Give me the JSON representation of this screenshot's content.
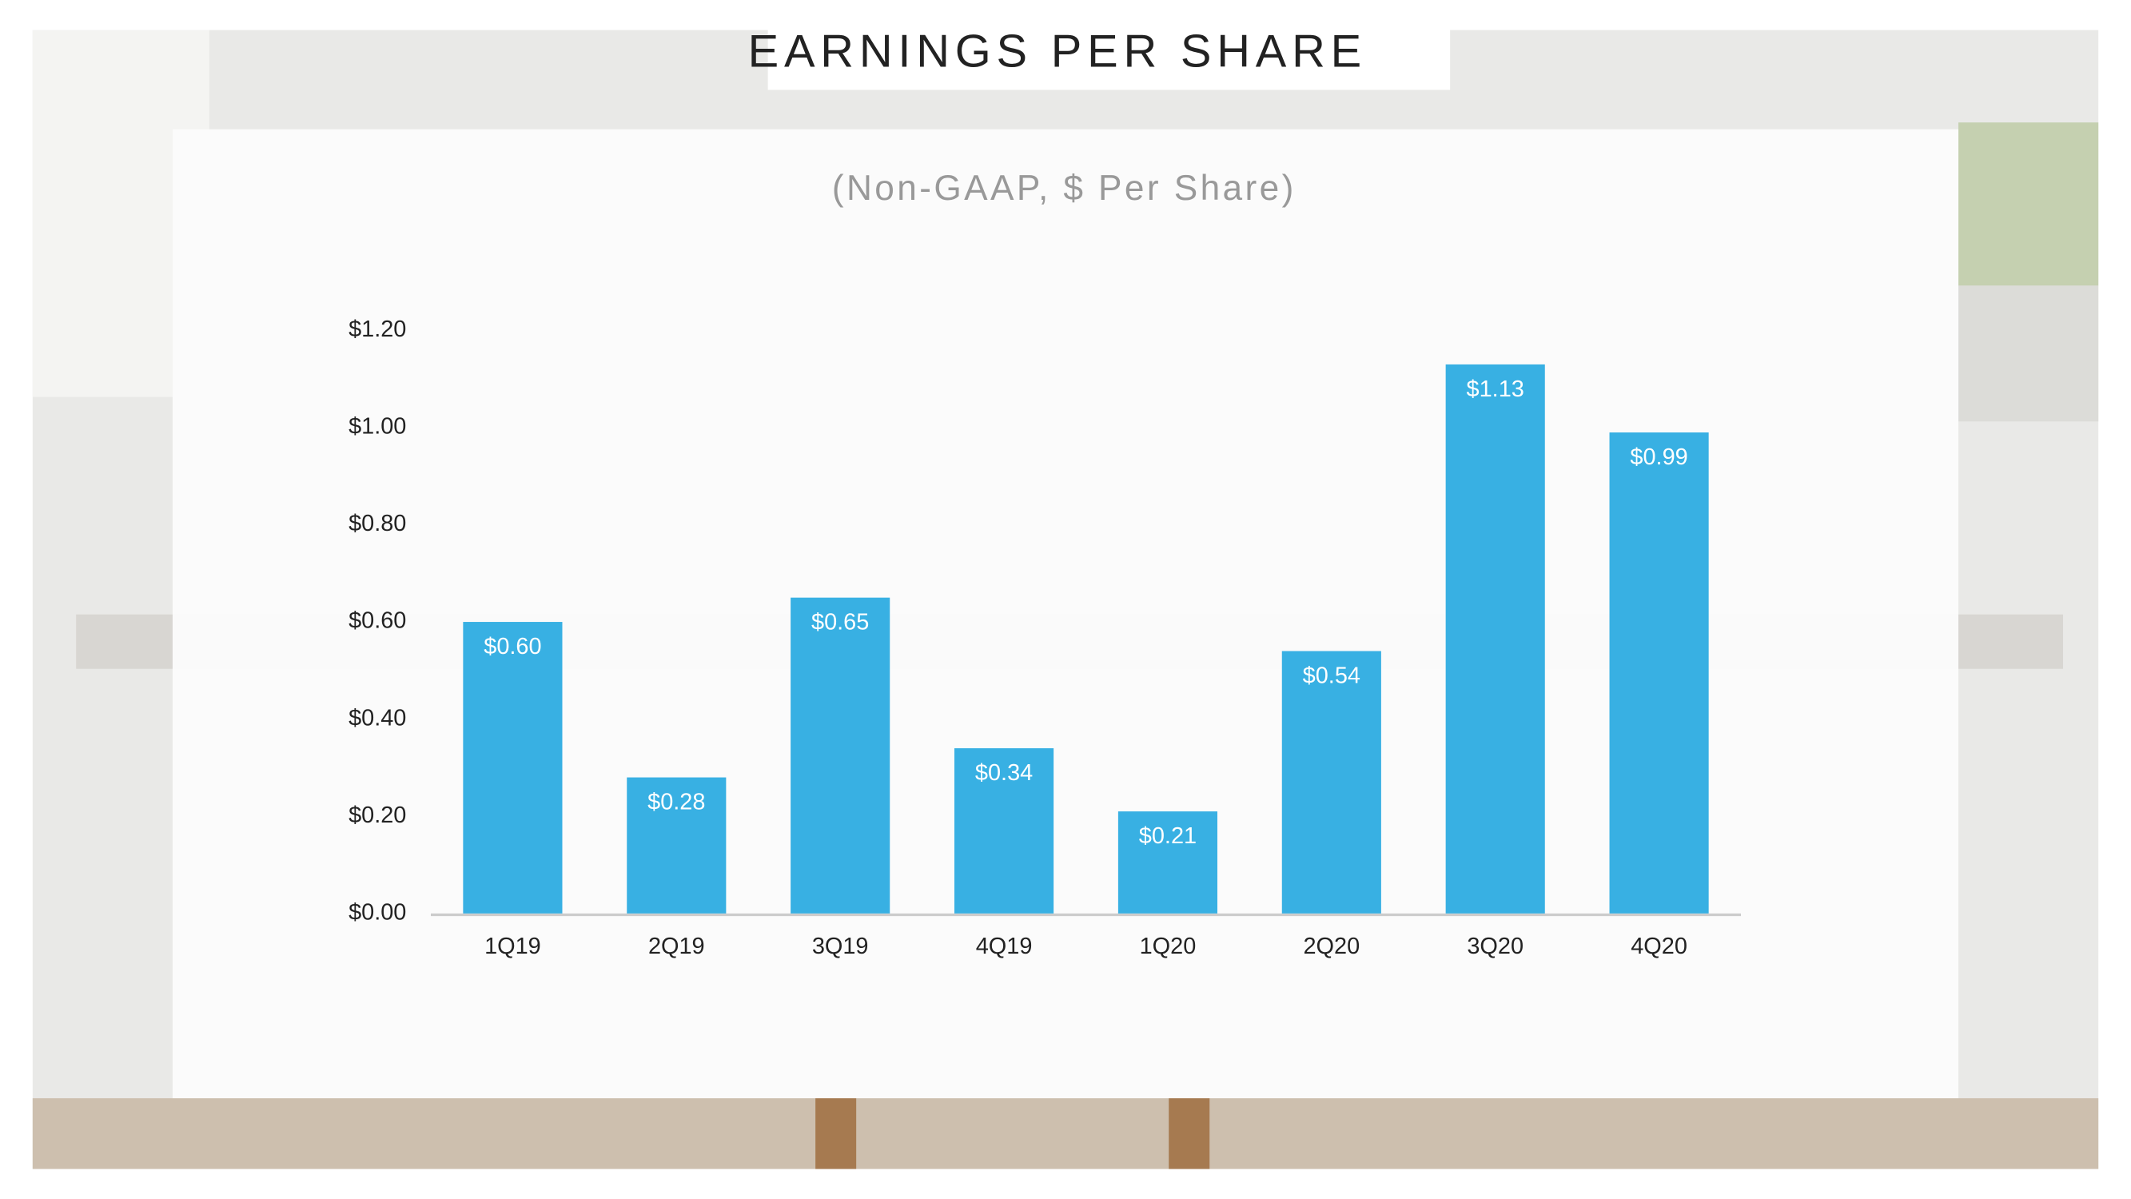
{
  "chart_data": {
    "type": "bar",
    "title": "EARNINGS PER SHARE",
    "subtitle": "(Non-GAAP, $ Per Share)",
    "categories": [
      "1Q19",
      "2Q19",
      "3Q19",
      "4Q19",
      "1Q20",
      "2Q20",
      "3Q20",
      "4Q20"
    ],
    "values": [
      0.6,
      0.28,
      0.65,
      0.34,
      0.21,
      0.54,
      1.13,
      0.99
    ],
    "value_labels": [
      "$0.60",
      "$0.28",
      "$0.65",
      "$0.34",
      "$0.21",
      "$0.54",
      "$1.13",
      "$0.99"
    ],
    "color": "#38b0e3",
    "ylim": [
      0,
      1.2
    ],
    "yticks": [
      {
        "value": 0,
        "label": "$0.00"
      },
      {
        "value": 0.2,
        "label": "$0.20"
      },
      {
        "value": 0.4,
        "label": "$0.40"
      },
      {
        "value": 0.6,
        "label": "$0.60"
      },
      {
        "value": 0.8,
        "label": "$0.80"
      },
      {
        "value": 1.0,
        "label": "$1.00"
      },
      {
        "value": 1.2,
        "label": "$1.20"
      }
    ],
    "grid": false
  }
}
